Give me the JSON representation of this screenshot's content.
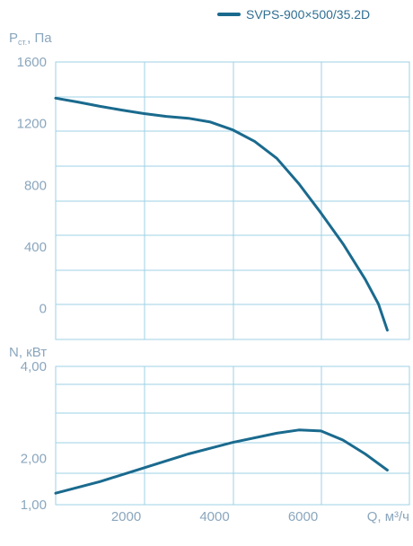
{
  "legend": {
    "label": "SVPS-900×500/35.2D",
    "color": "#1a6a8e"
  },
  "chart_data": [
    {
      "type": "line",
      "ylabel_main": "P",
      "ylabel_sub": "ст.",
      "ylabel_unit": ", Па",
      "xlim": [
        0,
        8000
      ],
      "ylim": [
        -200,
        1600
      ],
      "y_ticks": [
        {
          "value": 1600,
          "label": "1600"
        },
        {
          "value": 1200,
          "label": "1200"
        },
        {
          "value": 800,
          "label": "800"
        },
        {
          "value": 400,
          "label": "400"
        },
        {
          "value": 0,
          "label": "0"
        }
      ],
      "grid": true,
      "series": [
        {
          "name": "SVPS-900×500/35.2D",
          "x": [
            0,
            500,
            1000,
            1500,
            2000,
            2500,
            3000,
            3500,
            4000,
            4500,
            5000,
            5500,
            6000,
            6500,
            7000,
            7300,
            7500
          ],
          "y": [
            1365,
            1340,
            1312,
            1288,
            1265,
            1247,
            1235,
            1210,
            1160,
            1085,
            975,
            810,
            620,
            420,
            190,
            30,
            -140
          ]
        }
      ]
    },
    {
      "type": "line",
      "ylabel": "N, кВт",
      "xlabel": "Q, м³/ч",
      "xlim": [
        0,
        8000
      ],
      "ylim": [
        1.0,
        4.0
      ],
      "y_ticks": [
        {
          "value": 4.0,
          "label": "4,00"
        },
        {
          "value": 2.0,
          "label": "2,00"
        },
        {
          "value": 1.0,
          "label": "1,00"
        }
      ],
      "x_ticks": [
        {
          "value": 2000,
          "label": "2000"
        },
        {
          "value": 4000,
          "label": "4000"
        },
        {
          "value": 6000,
          "label": "6000"
        }
      ],
      "grid": true,
      "series": [
        {
          "name": "SVPS-900×500/35.2D",
          "x": [
            0,
            1000,
            2000,
            3000,
            4000,
            5000,
            5500,
            6000,
            6500,
            7000,
            7500
          ],
          "y": [
            1.25,
            1.5,
            1.8,
            2.1,
            2.35,
            2.55,
            2.62,
            2.6,
            2.4,
            2.1,
            1.75
          ]
        }
      ]
    }
  ]
}
